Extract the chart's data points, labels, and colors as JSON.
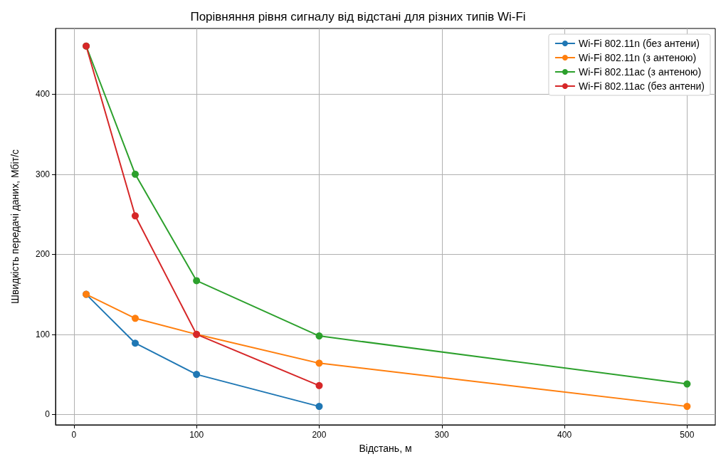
{
  "chart_data": {
    "type": "line",
    "title": "Порівняння рівня сигналу від відстані для різних типів Wi-Fi",
    "xlabel": "Відстань, м",
    "ylabel": "Швидкість передачі даних, Мбіт/с",
    "series": [
      {
        "name": "Wi-Fi 802.11n (без антени)",
        "color": "#1f77b4",
        "x": [
          10,
          50,
          100,
          200
        ],
        "values": [
          150,
          89,
          50,
          10
        ]
      },
      {
        "name": "Wi-Fi 802.11n (з антеною)",
        "color": "#ff7f0e",
        "x": [
          10,
          50,
          100,
          200,
          500
        ],
        "values": [
          150,
          120,
          100,
          64,
          10
        ]
      },
      {
        "name": "Wi-Fi 802.11ac (з антеною)",
        "color": "#2ca02c",
        "x": [
          10,
          50,
          100,
          200,
          500
        ],
        "values": [
          460,
          300,
          167,
          98,
          38
        ]
      },
      {
        "name": "Wi-Fi 802.11ac (без антени)",
        "color": "#d62728",
        "x": [
          10,
          50,
          100,
          200
        ],
        "values": [
          460,
          248,
          100,
          36
        ]
      }
    ],
    "xlim": [
      -15,
      523
    ],
    "ylim": [
      -13,
      482
    ],
    "xticks": [
      0,
      100,
      200,
      300,
      400,
      500
    ],
    "yticks": [
      0,
      100,
      200,
      300,
      400
    ],
    "grid": true,
    "legend": "top right",
    "marker": "circle",
    "line_style": "solid"
  }
}
